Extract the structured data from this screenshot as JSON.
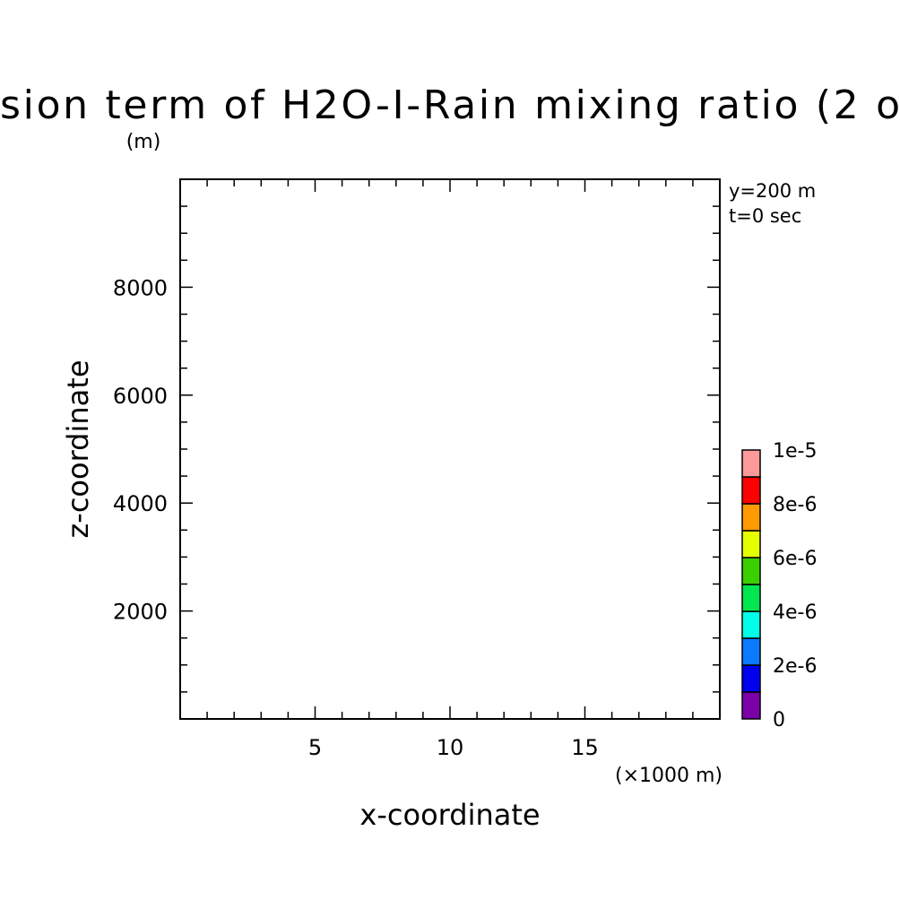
{
  "chart_data": {
    "type": "heatmap",
    "title": "sion term of H2O-I-Rain mixing ratio (2 o",
    "z_unit_label": "(m)",
    "x_unit_label": "(×1000 m)",
    "xlabel": "x-coordinate",
    "ylabel": "z-coordinate",
    "annotations": [
      "y=200 m",
      "t=0 sec"
    ],
    "xlim": [
      0,
      20
    ],
    "ylim": [
      0,
      10000
    ],
    "x_major_ticks": [
      5,
      10,
      15
    ],
    "x_tick_labels": [
      "5",
      "10",
      "15"
    ],
    "x_minor_step": 1,
    "y_major_ticks": [
      2000,
      4000,
      6000,
      8000
    ],
    "y_tick_labels": [
      "2000",
      "4000",
      "6000",
      "8000"
    ],
    "y_minor_step": 500,
    "values": [],
    "colorbar": {
      "bounds": [
        0,
        1e-06,
        2e-06,
        3e-06,
        4e-06,
        5e-06,
        6e-06,
        7e-06,
        8e-06,
        9e-06,
        1e-05
      ],
      "colors": [
        "#7a00a8",
        "#0000f0",
        "#0a7aff",
        "#00ffe8",
        "#00e650",
        "#3ccf00",
        "#e6ff00",
        "#ff9a00",
        "#ff0000",
        "#ff9a9a"
      ],
      "tick_values": [
        0,
        2e-06,
        4e-06,
        6e-06,
        8e-06,
        1e-05
      ],
      "tick_labels": [
        "0",
        "2e-6",
        "4e-6",
        "6e-6",
        "8e-6",
        "1e-5"
      ]
    }
  }
}
